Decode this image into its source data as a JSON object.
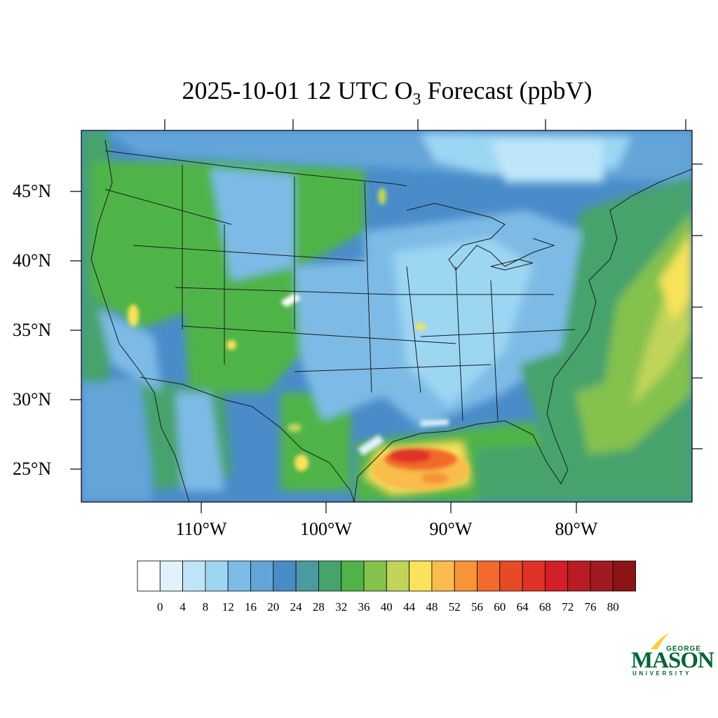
{
  "title": {
    "prefix": "2025-10-01 12 UTC O",
    "subscript": "3",
    "suffix": " Forecast (ppbV)"
  },
  "lat_labels": [
    "45°N",
    "40°N",
    "35°N",
    "30°N",
    "25°N"
  ],
  "lon_labels": [
    "110°W",
    "100°W",
    "90°W",
    "80°W"
  ],
  "colorbar": {
    "colors": [
      "#ffffff",
      "#e1f2fb",
      "#bfe6f8",
      "#9cd6f3",
      "#7dbbe6",
      "#63a4d9",
      "#4a8cc9",
      "#4a9ba1",
      "#47a36c",
      "#4fb447",
      "#84c14d",
      "#c0d45a",
      "#f8e35a",
      "#f8bd4c",
      "#f79438",
      "#f26a2c",
      "#e64b26",
      "#e03226",
      "#d21f2a",
      "#b91c24",
      "#a2191f",
      "#8b1418"
    ],
    "tick_labels": [
      "0",
      "4",
      "8",
      "12",
      "16",
      "20",
      "24",
      "28",
      "32",
      "36",
      "40",
      "44",
      "48",
      "52",
      "56",
      "60",
      "64",
      "68",
      "72",
      "76",
      "80"
    ]
  },
  "logo": {
    "top": "GEORGE",
    "main": "MASON",
    "bottom": "UNIVERSITY"
  },
  "colors": {
    "brand_green": "#006633",
    "brand_gold": "#FFCC33"
  }
}
